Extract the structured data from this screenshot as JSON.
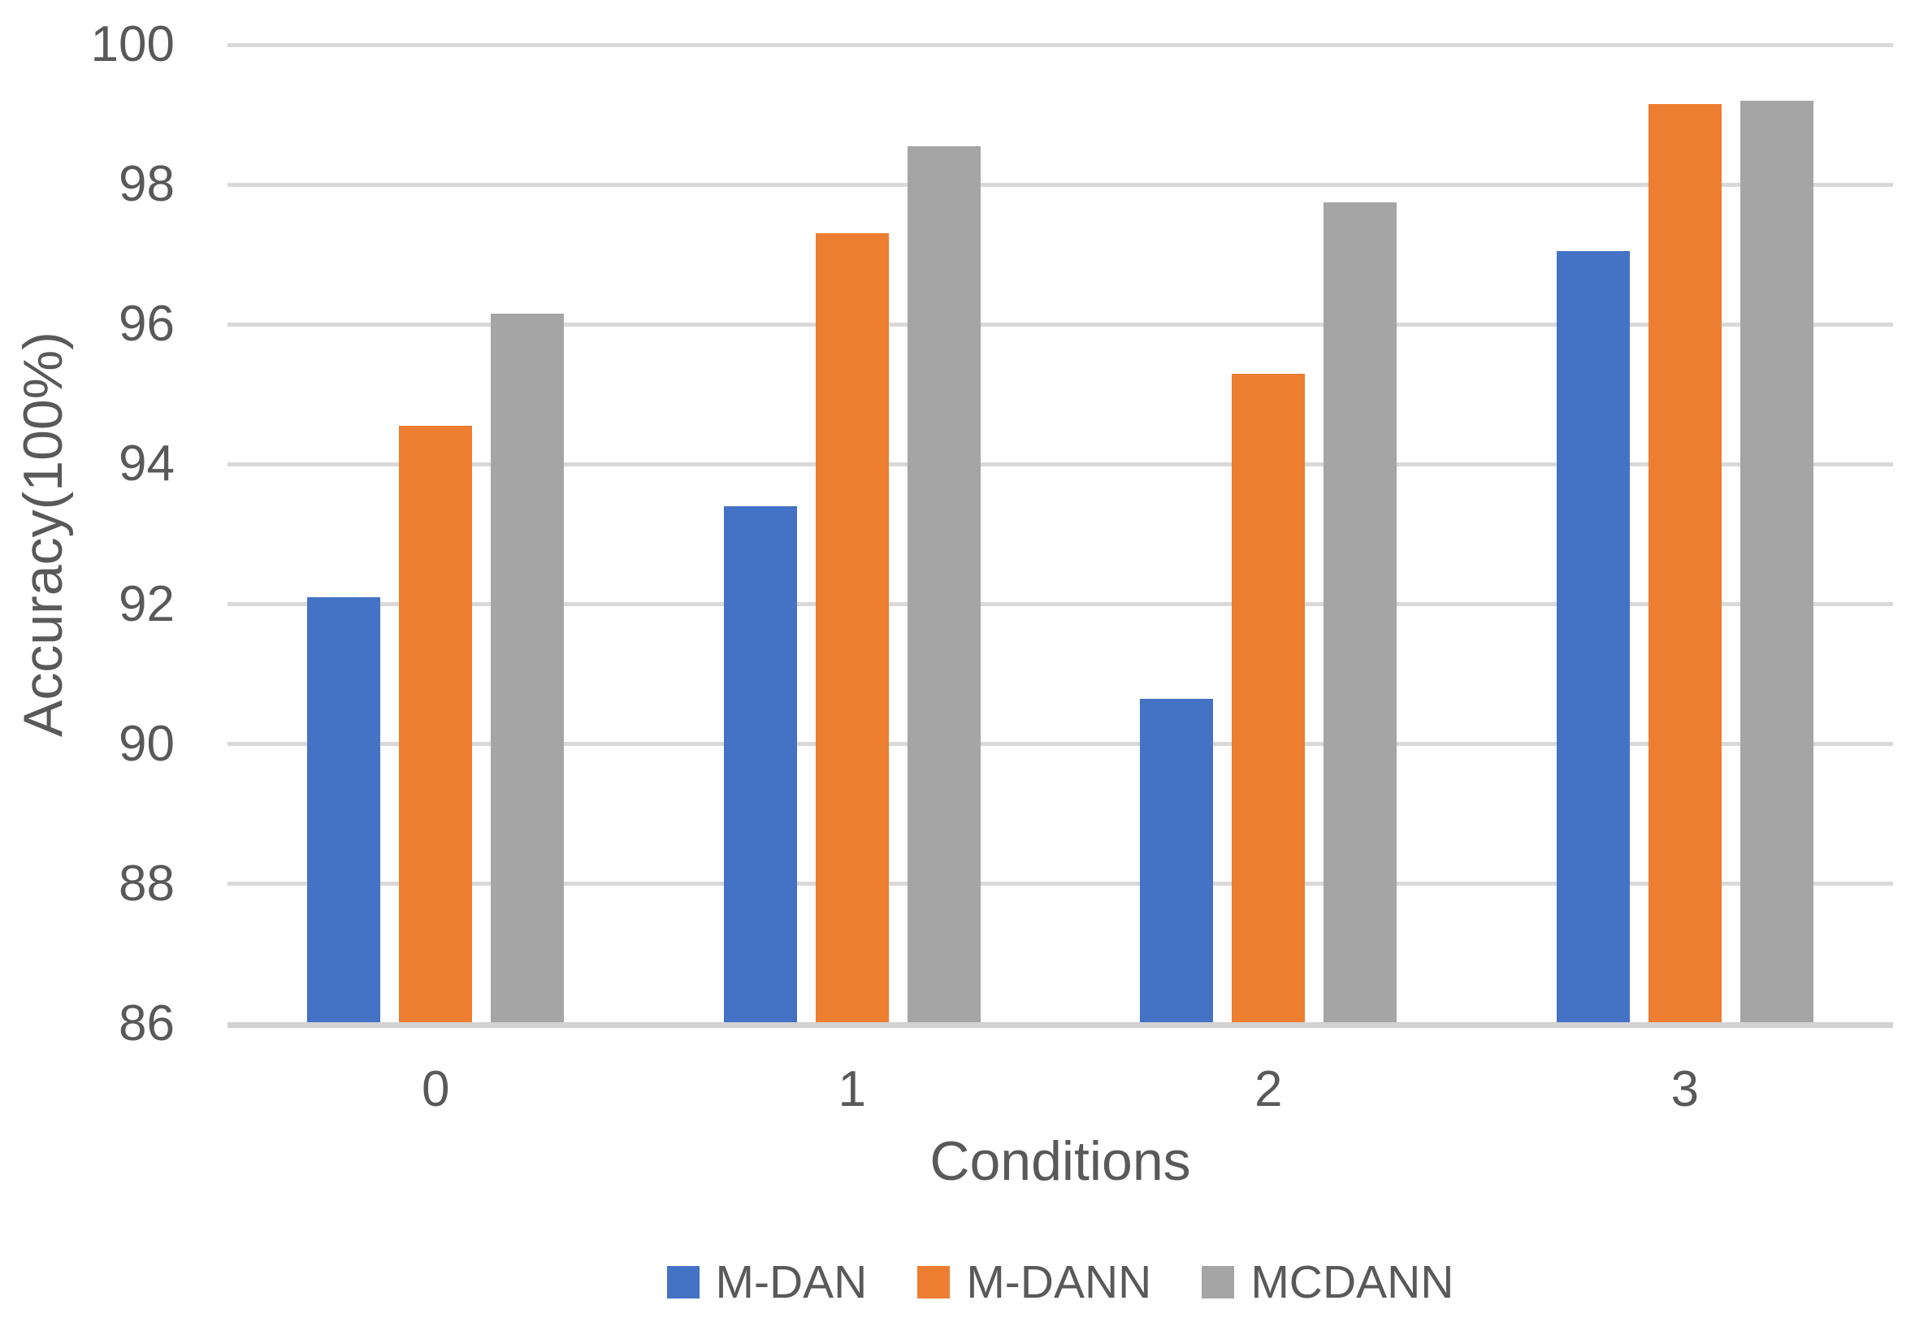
{
  "chart_data": {
    "type": "bar",
    "title": "",
    "categories": [
      "0",
      "1",
      "2",
      "3"
    ],
    "series": [
      {
        "name": "M-DAN",
        "color": "#4472C4",
        "values": [
          92.1,
          93.4,
          90.65,
          97.05
        ]
      },
      {
        "name": "M-DANN",
        "color": "#ED7D31",
        "values": [
          94.55,
          97.3,
          95.3,
          99.15
        ]
      },
      {
        "name": "MCDANN",
        "color": "#A5A5A5",
        "values": [
          96.15,
          98.55,
          97.75,
          99.2
        ]
      }
    ],
    "xlabel": "Conditions",
    "ylabel": "Accuracy(100%)",
    "ylim": [
      86,
      100
    ],
    "yticks": [
      86,
      88,
      90,
      92,
      94,
      96,
      98,
      100
    ],
    "grid": true,
    "legend_position": "bottom",
    "text_color": "#595959",
    "gridline_color": "#D9D9D9",
    "axis_line_color": "#D2D2D2"
  }
}
